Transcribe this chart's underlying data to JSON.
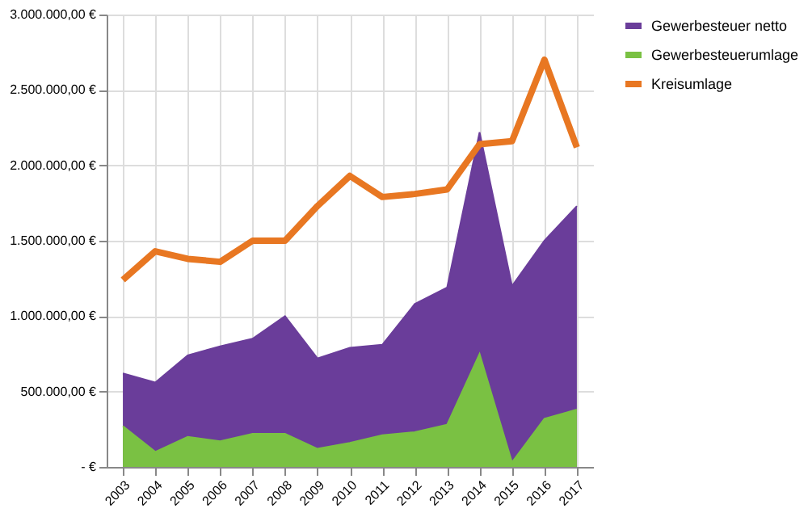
{
  "chart_data": {
    "type": "area",
    "categories": [
      "2003",
      "2004",
      "2005",
      "2006",
      "2007",
      "2008",
      "2009",
      "2010",
      "2011",
      "2012",
      "2013",
      "2014",
      "2015",
      "2016",
      "2017"
    ],
    "series": [
      {
        "name": "Gewerbesteuer netto",
        "color": "#6a3d9a",
        "values": [
          620000,
          560000,
          740000,
          800000,
          850000,
          1000000,
          720000,
          790000,
          810000,
          1080000,
          1190000,
          2220000,
          1200000,
          1500000,
          1730000
        ]
      },
      {
        "name": "Gewerbesteuerumlage",
        "color": "#7ac143",
        "values": [
          270000,
          100000,
          200000,
          170000,
          220000,
          220000,
          120000,
          160000,
          210000,
          230000,
          280000,
          750000,
          30000,
          320000,
          380000
        ]
      },
      {
        "name": "Kreisumlage",
        "color": "#e87722",
        "type": "line",
        "values": [
          1240000,
          1430000,
          1380000,
          1360000,
          1500000,
          1500000,
          1730000,
          1930000,
          1790000,
          1810000,
          1840000,
          2140000,
          2160000,
          2700000,
          2120000
        ]
      }
    ],
    "ylim": [
      0,
      3000000
    ],
    "yticks": [
      {
        "value": 0,
        "label": "- €"
      },
      {
        "value": 500000,
        "label": "500.000,00 €"
      },
      {
        "value": 1000000,
        "label": "1.000.000,00 €"
      },
      {
        "value": 1500000,
        "label": "1.500.000,00 €"
      },
      {
        "value": 2000000,
        "label": "2.000.000,00 €"
      },
      {
        "value": 2500000,
        "label": "2.500.000,00 €"
      },
      {
        "value": 3000000,
        "label": "3.000.000,00 €"
      }
    ],
    "grid": true,
    "legend": "right",
    "line_style": "solid"
  }
}
